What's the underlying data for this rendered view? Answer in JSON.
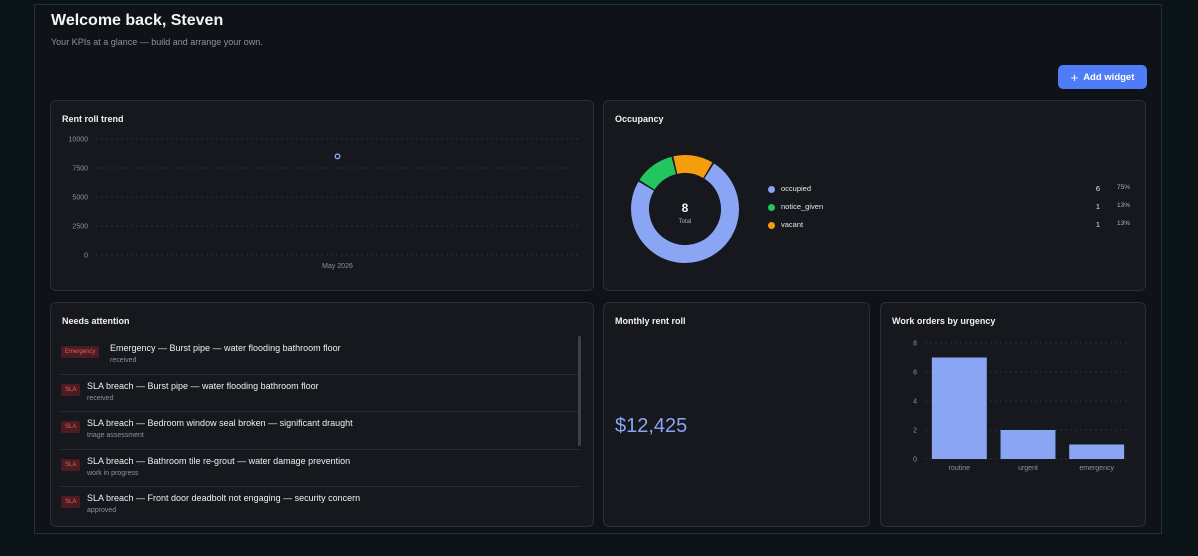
{
  "header": {
    "title": "Welcome back, Steven",
    "subtitle": "Your KPIs at a glance — build and arrange your own.",
    "add_widget_label": "Add widget"
  },
  "rent_roll_trend": {
    "title": "Rent roll trend",
    "chart_data": {
      "type": "scatter",
      "x": [
        "May 2026"
      ],
      "y": [
        8500
      ],
      "ylim": [
        0,
        10000
      ],
      "yticks": [
        "10000",
        "7500",
        "5000",
        "2500",
        "0"
      ],
      "xlabel": "",
      "ylabel": "",
      "grid": true,
      "color": "#8ba5f5"
    }
  },
  "occupancy": {
    "title": "Occupancy",
    "total_value": "8",
    "total_label": "Total",
    "chart_data": {
      "type": "pie",
      "donut": true,
      "slices": [
        {
          "label": "occupied",
          "value": 6,
          "percent": "75%",
          "color": "#8ba5f5"
        },
        {
          "label": "notice_given",
          "value": 1,
          "percent": "13%",
          "color": "#22c55e"
        },
        {
          "label": "vacant",
          "value": 1,
          "percent": "13%",
          "color": "#f59e0b"
        }
      ]
    },
    "legend": [
      {
        "label": "occupied",
        "count": "6",
        "percent": "75%"
      },
      {
        "label": "notice_given",
        "count": "1",
        "percent": "13%"
      },
      {
        "label": "vacant",
        "count": "1",
        "percent": "13%"
      }
    ]
  },
  "needs_attention": {
    "title": "Needs attention",
    "items": [
      {
        "badge": "Emergency",
        "title": "Emergency — Burst pipe — water flooding bathroom floor",
        "status": "received"
      },
      {
        "badge": "SLA",
        "title": "SLA breach — Burst pipe — water flooding bathroom floor",
        "status": "received"
      },
      {
        "badge": "SLA",
        "title": "SLA breach — Bedroom window seal broken — significant draught",
        "status": "triage assessment"
      },
      {
        "badge": "SLA",
        "title": "SLA breach — Bathroom tile re-grout — water damage prevention",
        "status": "work in progress"
      },
      {
        "badge": "SLA",
        "title": "SLA breach — Front door deadbolt not engaging — security concern",
        "status": "approved"
      }
    ]
  },
  "monthly_rent_roll": {
    "title": "Monthly rent roll",
    "value": "$12,425"
  },
  "work_orders": {
    "title": "Work orders by urgency",
    "chart_data": {
      "type": "bar",
      "categories": [
        "routine",
        "urgent",
        "emergency"
      ],
      "values": [
        7,
        2,
        1
      ],
      "ylim": [
        0,
        8
      ],
      "yticks": [
        "8",
        "6",
        "4",
        "2",
        "0"
      ],
      "xlabel": "",
      "ylabel": "",
      "grid": true,
      "color": "#8ba5f5"
    }
  }
}
